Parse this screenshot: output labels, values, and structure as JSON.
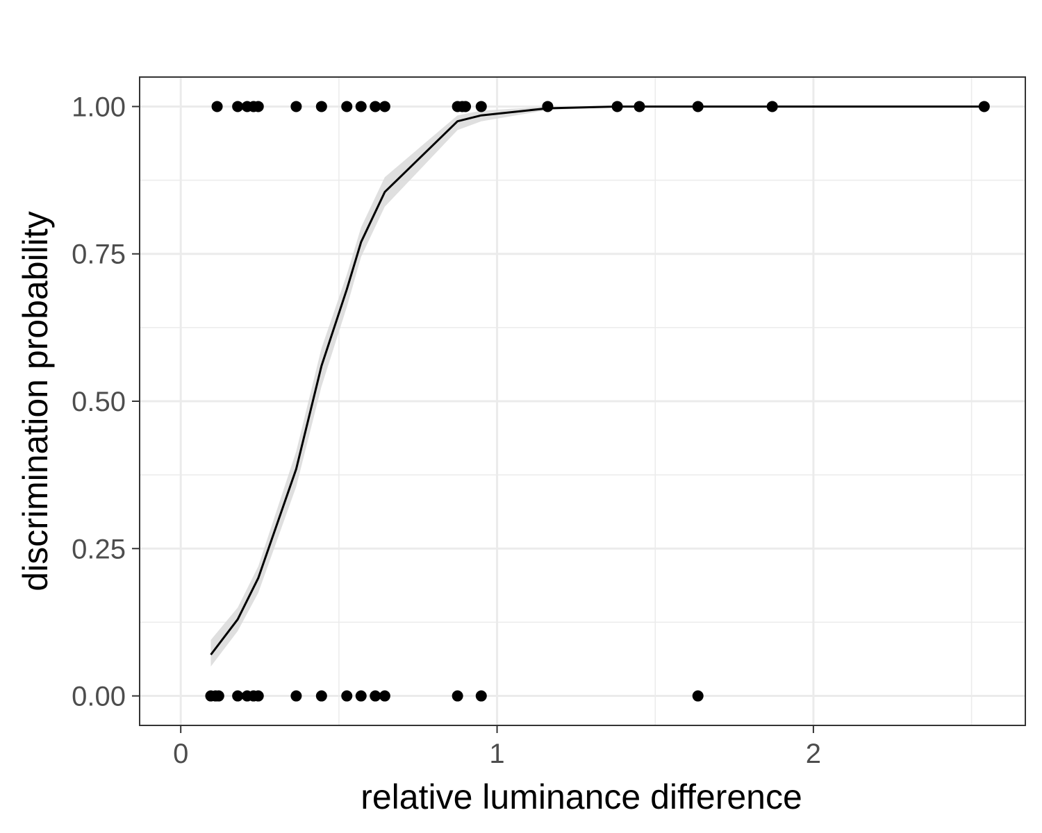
{
  "chart_data": {
    "type": "scatter",
    "xlabel": "relative luminance difference",
    "ylabel": "discrimination probability",
    "xlim": [
      -0.13,
      2.67
    ],
    "ylim": [
      -0.05,
      1.05
    ],
    "x_ticks": [
      {
        "value": 0,
        "label": "0"
      },
      {
        "value": 1,
        "label": "1"
      },
      {
        "value": 2,
        "label": "2"
      }
    ],
    "y_ticks": [
      {
        "value": 0,
        "label": "0.00"
      },
      {
        "value": 0.25,
        "label": "0.25"
      },
      {
        "value": 0.5,
        "label": "0.50"
      },
      {
        "value": 0.75,
        "label": "0.75"
      },
      {
        "value": 1,
        "label": "1.00"
      }
    ],
    "grid": true,
    "points": [
      {
        "x": 0.115,
        "y": 1
      },
      {
        "x": 0.18,
        "y": 1
      },
      {
        "x": 0.21,
        "y": 1
      },
      {
        "x": 0.23,
        "y": 1
      },
      {
        "x": 0.245,
        "y": 1
      },
      {
        "x": 0.365,
        "y": 1
      },
      {
        "x": 0.445,
        "y": 1
      },
      {
        "x": 0.525,
        "y": 1
      },
      {
        "x": 0.57,
        "y": 1
      },
      {
        "x": 0.615,
        "y": 1
      },
      {
        "x": 0.645,
        "y": 1
      },
      {
        "x": 0.875,
        "y": 1
      },
      {
        "x": 0.89,
        "y": 1
      },
      {
        "x": 0.9,
        "y": 1
      },
      {
        "x": 0.95,
        "y": 1
      },
      {
        "x": 1.16,
        "y": 1
      },
      {
        "x": 1.38,
        "y": 1
      },
      {
        "x": 1.45,
        "y": 1
      },
      {
        "x": 1.635,
        "y": 1
      },
      {
        "x": 1.87,
        "y": 1
      },
      {
        "x": 2.54,
        "y": 1
      },
      {
        "x": 0.095,
        "y": 0
      },
      {
        "x": 0.11,
        "y": 0
      },
      {
        "x": 0.12,
        "y": 0
      },
      {
        "x": 0.18,
        "y": 0
      },
      {
        "x": 0.21,
        "y": 0
      },
      {
        "x": 0.23,
        "y": 0
      },
      {
        "x": 0.245,
        "y": 0
      },
      {
        "x": 0.365,
        "y": 0
      },
      {
        "x": 0.445,
        "y": 0
      },
      {
        "x": 0.525,
        "y": 0
      },
      {
        "x": 0.57,
        "y": 0
      },
      {
        "x": 0.615,
        "y": 0
      },
      {
        "x": 0.645,
        "y": 0
      },
      {
        "x": 0.875,
        "y": 0
      },
      {
        "x": 0.95,
        "y": 0
      },
      {
        "x": 1.635,
        "y": 0
      }
    ],
    "fit_line": [
      {
        "x": 0.095,
        "y": 0.07
      },
      {
        "x": 0.18,
        "y": 0.13
      },
      {
        "x": 0.245,
        "y": 0.2
      },
      {
        "x": 0.365,
        "y": 0.385
      },
      {
        "x": 0.445,
        "y": 0.56
      },
      {
        "x": 0.525,
        "y": 0.69
      },
      {
        "x": 0.57,
        "y": 0.77
      },
      {
        "x": 0.645,
        "y": 0.855
      },
      {
        "x": 0.875,
        "y": 0.975
      },
      {
        "x": 0.95,
        "y": 0.985
      },
      {
        "x": 1.16,
        "y": 0.997
      },
      {
        "x": 1.38,
        "y": 1.0
      },
      {
        "x": 2.54,
        "y": 1.0
      }
    ],
    "fit_band": [
      {
        "x": 0.095,
        "lo": 0.05,
        "hi": 0.095
      },
      {
        "x": 0.18,
        "lo": 0.11,
        "hi": 0.15
      },
      {
        "x": 0.245,
        "lo": 0.175,
        "hi": 0.22
      },
      {
        "x": 0.365,
        "lo": 0.355,
        "hi": 0.415
      },
      {
        "x": 0.445,
        "lo": 0.525,
        "hi": 0.59
      },
      {
        "x": 0.525,
        "lo": 0.66,
        "hi": 0.715
      },
      {
        "x": 0.57,
        "lo": 0.745,
        "hi": 0.795
      },
      {
        "x": 0.645,
        "lo": 0.83,
        "hi": 0.88
      },
      {
        "x": 0.875,
        "lo": 0.96,
        "hi": 0.985
      },
      {
        "x": 0.95,
        "lo": 0.975,
        "hi": 0.993
      },
      {
        "x": 1.16,
        "lo": 0.994,
        "hi": 1.0
      },
      {
        "x": 1.38,
        "lo": 0.999,
        "hi": 1.0
      },
      {
        "x": 2.54,
        "lo": 1.0,
        "hi": 1.0
      }
    ],
    "colors": {
      "points": "#000000",
      "line": "#000000",
      "band": "#d9d9d9",
      "grid": "#ebebeb",
      "panel_border": "#333333"
    }
  }
}
